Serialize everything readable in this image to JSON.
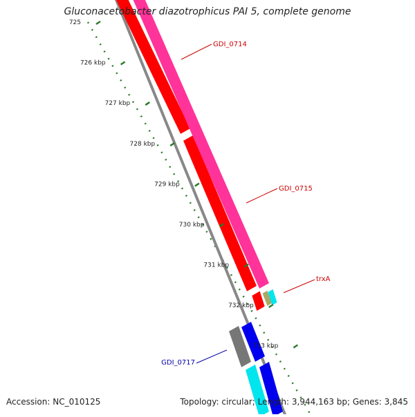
{
  "title": "Gluconacetobacter diazotrophicus PAI 5, complete genome",
  "accession": "Accession: NC_010125",
  "summary": "Topology: circular; Length: 3,944,163 bp; Genes: 3,845",
  "ticks": [
    {
      "label": "725",
      "t": 0.0
    },
    {
      "label": "726 kbp",
      "t": 0.107
    },
    {
      "label": "727 kbp",
      "t": 0.214
    },
    {
      "label": "728 kbp",
      "t": 0.322
    },
    {
      "label": "729 kbp",
      "t": 0.429
    },
    {
      "label": "730 kbp",
      "t": 0.536
    },
    {
      "label": "731 kbp",
      "t": 0.643
    },
    {
      "label": "732 kbp",
      "t": 0.75
    },
    {
      "label": "733 kbp",
      "t": 0.857
    }
  ],
  "gene_labels": [
    {
      "name": "GDI_0714",
      "color": "#cc0000"
    },
    {
      "name": "GDI_0715",
      "color": "#cc0000"
    },
    {
      "name": "trxA",
      "color": "#cc0000"
    },
    {
      "name": "GDI_0717",
      "color": "#0000aa"
    }
  ],
  "colors": {
    "cds": "#ff0000",
    "gene": "#ff3399",
    "trna": "#aaaa66",
    "misc": "#00e5ee",
    "cds_minus": "#0000ee",
    "gene_minus": "#00e5ee",
    "pseudo": "#777777",
    "backbone": "#888888",
    "tick": "#2a7a2a"
  }
}
